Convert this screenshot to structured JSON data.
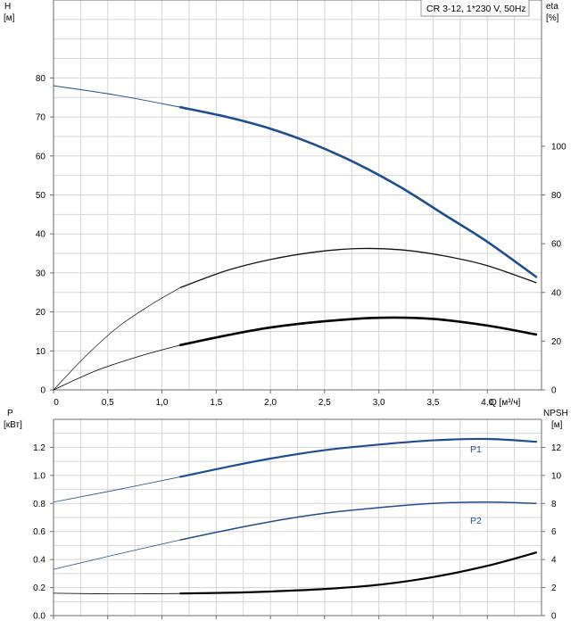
{
  "chart_data": [
    {
      "type": "line",
      "title": "CR 3-12, 1*230 V, 50Hz",
      "xlabel": "Q [м³/ч]",
      "ylabel_left": "H",
      "ylabel_left_unit": "[м]",
      "ylabel_right": "eta",
      "ylabel_right_unit": "[%]",
      "grid": true,
      "xlim": [
        0,
        4.5
      ],
      "ylim_left": [
        0,
        100
      ],
      "ylim_right": [
        0,
        160
      ],
      "x_ticks": [
        0,
        0.5,
        1.0,
        1.5,
        2.0,
        2.5,
        3.0,
        3.5,
        4.0
      ],
      "x_tick_labels": [
        "0",
        "0,5",
        "1,0",
        "1,5",
        "2,0",
        "2,5",
        "3,0",
        "3,5",
        "4,0"
      ],
      "y_left_ticks": [
        0,
        10,
        20,
        30,
        40,
        50,
        60,
        70,
        80
      ],
      "y_right_ticks": [
        0,
        20,
        40,
        60,
        80,
        100
      ],
      "series": [
        {
          "axis": "left",
          "color": "#1f4e8c",
          "width": 2.6,
          "thin_width": 1,
          "op_start": 1.17,
          "x": [
            0,
            0.6,
            1.17,
            1.6,
            2.0,
            2.4,
            2.8,
            3.2,
            3.6,
            4.0,
            4.45
          ],
          "y": [
            78,
            75.5,
            72.5,
            70,
            67,
            63,
            58,
            52,
            45,
            38,
            29
          ]
        },
        {
          "axis": "right",
          "color": "#111111",
          "width": 1.3,
          "thin_width": 0.7,
          "op_start": 1.17,
          "x": [
            0,
            0.3,
            0.6,
            0.9,
            1.17,
            1.6,
            2.0,
            2.4,
            2.8,
            3.2,
            3.6,
            4.0,
            4.45
          ],
          "y": [
            0,
            14,
            26,
            35,
            42,
            49,
            53.5,
            56.5,
            58,
            57.5,
            55,
            51,
            44
          ]
        },
        {
          "axis": "left",
          "color": "#000000",
          "width": 2.6,
          "thin_width": 0.8,
          "op_start": 1.17,
          "x": [
            0,
            0.4,
            0.8,
            1.17,
            1.6,
            2.0,
            2.5,
            3.0,
            3.5,
            4.0,
            4.45
          ],
          "y": [
            0,
            5,
            8.7,
            11.5,
            14,
            16,
            17.6,
            18.5,
            18.2,
            16.5,
            14.2
          ]
        }
      ]
    },
    {
      "type": "line",
      "title": "",
      "xlabel": "",
      "ylabel_left": "P",
      "ylabel_left_unit": "[кВт]",
      "ylabel_right": "NPSH",
      "ylabel_right_unit": "[м]",
      "grid": true,
      "xlim": [
        0,
        4.5
      ],
      "ylim_left": [
        0,
        1.4
      ],
      "ylim_right": [
        0,
        14
      ],
      "x_ticks": [
        0,
        0.5,
        1.0,
        1.5,
        2.0,
        2.5,
        3.0,
        3.5,
        4.0
      ],
      "y_left_ticks": [
        0,
        0.2,
        0.4,
        0.6,
        0.8,
        1.0,
        1.2
      ],
      "y_left_tick_labels": [
        "0.0",
        "0.2",
        "0.4",
        "0.6",
        "0.8",
        "1.0",
        "1.2"
      ],
      "y_right_ticks": [
        0,
        2,
        4,
        6,
        8,
        10,
        12
      ],
      "series": [
        {
          "name": "P1",
          "axis": "left",
          "color": "#1f4e8c",
          "width": 2.2,
          "thin_width": 0.8,
          "op_start": 1.17,
          "x": [
            0,
            0.6,
            1.17,
            1.6,
            2.0,
            2.5,
            3.0,
            3.5,
            4.0,
            4.45
          ],
          "y": [
            0.81,
            0.9,
            0.99,
            1.06,
            1.12,
            1.18,
            1.22,
            1.25,
            1.26,
            1.24
          ]
        },
        {
          "name": "P2",
          "axis": "left",
          "color": "#1f4e8c",
          "width": 1.5,
          "thin_width": 0.8,
          "op_start": 1.17,
          "x": [
            0,
            0.6,
            1.17,
            1.6,
            2.0,
            2.5,
            3.0,
            3.5,
            4.0,
            4.45
          ],
          "y": [
            0.33,
            0.44,
            0.54,
            0.61,
            0.67,
            0.73,
            0.77,
            0.8,
            0.81,
            0.8
          ]
        },
        {
          "axis": "right",
          "color": "#000000",
          "width": 2.2,
          "thin_width": 0.8,
          "op_start": 1.17,
          "x": [
            0,
            0.6,
            1.17,
            1.6,
            2.0,
            2.5,
            3.0,
            3.5,
            4.0,
            4.45
          ],
          "y": [
            1.6,
            1.55,
            1.58,
            1.63,
            1.72,
            1.9,
            2.2,
            2.75,
            3.55,
            4.5
          ]
        }
      ]
    }
  ]
}
